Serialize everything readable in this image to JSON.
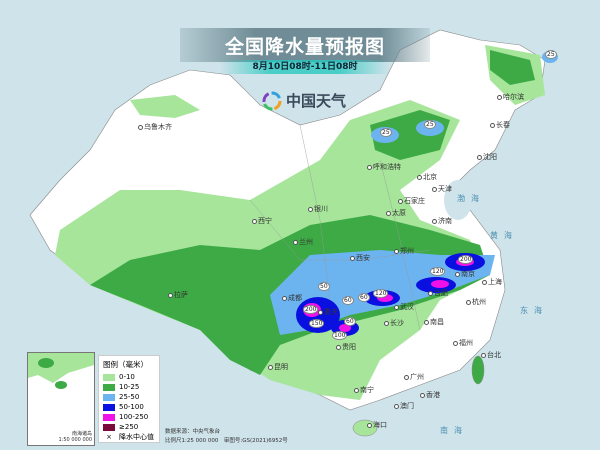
{
  "header": {
    "title": "全国降水量预报图",
    "subtitle": "8月10日08时-11日08时",
    "brand": "中国天气"
  },
  "legend": {
    "title": "图例（毫米）",
    "items": [
      {
        "label": "0-10",
        "color": "#a6e59a"
      },
      {
        "label": "10-25",
        "color": "#3daa46"
      },
      {
        "label": "25-50",
        "color": "#6cb4f0"
      },
      {
        "label": "50-100",
        "color": "#0a10e0"
      },
      {
        "label": "100-250",
        "color": "#f010e8"
      },
      {
        "label": "≥250",
        "color": "#7a0a3a"
      }
    ],
    "center_marker": "降水中心值"
  },
  "inset": {
    "label": "南海诸岛",
    "scale": "1:50 000 000"
  },
  "source": {
    "line1": "数据来源：中央气象台",
    "line2": "比例尺1:25 000 000　审图号:GS(2021)6952号"
  },
  "cities": [
    "乌鲁木齐",
    "哈尔滨",
    "长春",
    "沈阳",
    "呼和浩特",
    "北京",
    "天津",
    "石家庄",
    "太原",
    "济南",
    "银川",
    "西宁",
    "兰州",
    "郑州",
    "西安",
    "合肥",
    "南京",
    "上海",
    "武汉",
    "杭州",
    "长沙",
    "南昌",
    "成都",
    "重庆",
    "贵阳",
    "拉萨",
    "昆明",
    "南宁",
    "广州",
    "福州",
    "台北",
    "香港",
    "澳门",
    "海口"
  ],
  "seas": [
    "渤海",
    "黄海",
    "东海",
    "南海"
  ],
  "rain_centers": [
    "25",
    "25",
    "25",
    "50",
    "200",
    "150",
    "100",
    "60",
    "60",
    "60",
    "120",
    "120",
    "200"
  ]
}
